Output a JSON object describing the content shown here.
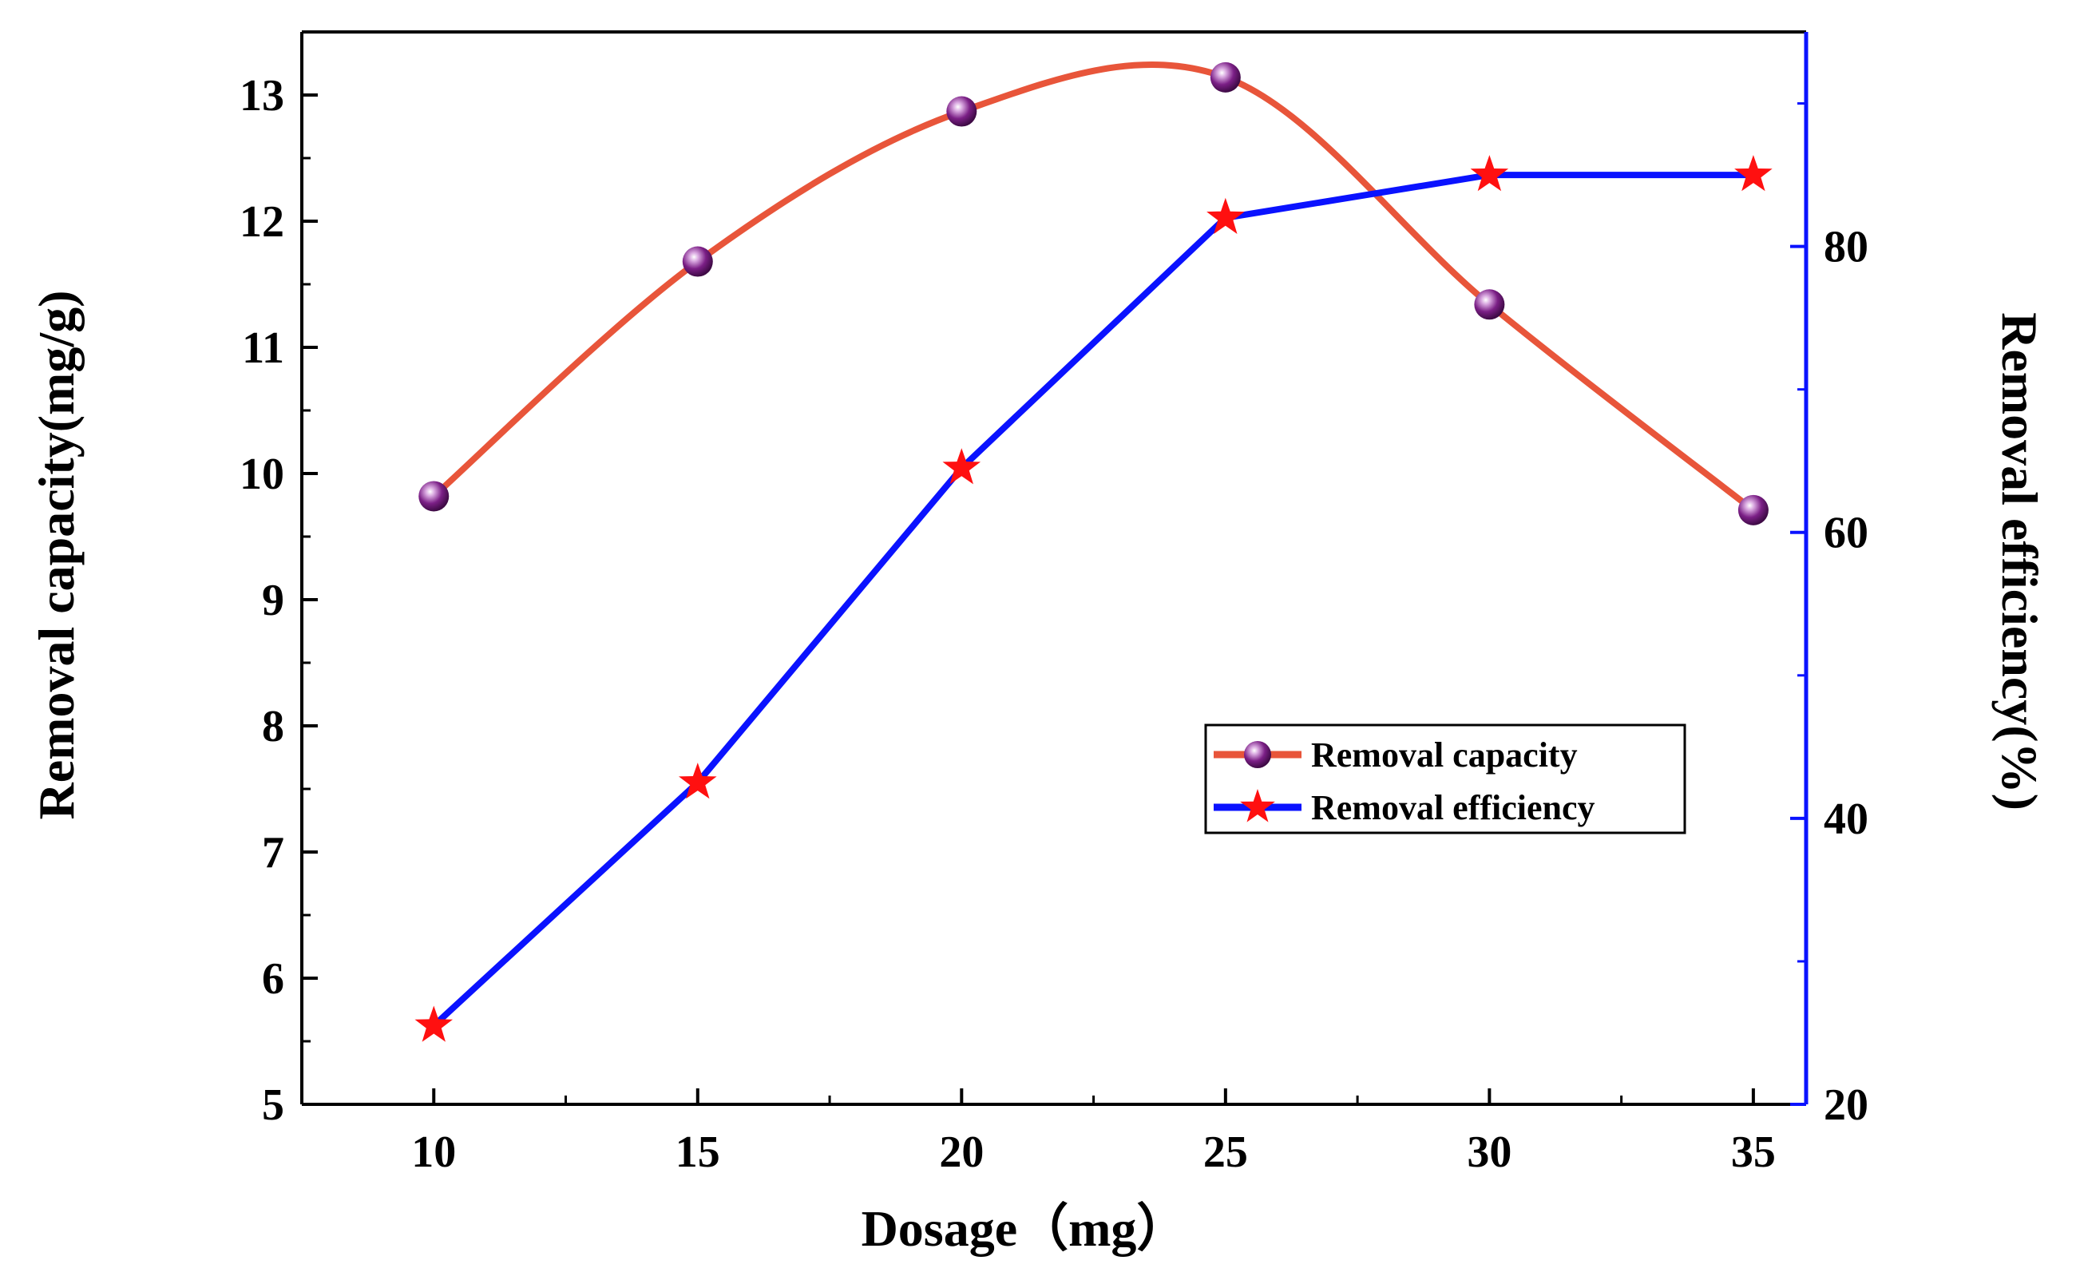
{
  "chart_data": {
    "type": "line",
    "x": [
      10,
      15,
      20,
      25,
      30,
      35
    ],
    "xlabel": "Dosage（mg）",
    "xlim": [
      7.5,
      36
    ],
    "x_ticks": [
      10,
      15,
      20,
      25,
      30,
      35
    ],
    "ylabel_left": "Removal capacity(mg/g)",
    "ylim_left": [
      5,
      13.5
    ],
    "y_ticks_left": [
      5,
      6,
      7,
      8,
      9,
      10,
      11,
      12,
      13
    ],
    "ylabel_right": "Removal efficiency(%)",
    "ylim_right": [
      20,
      95
    ],
    "y_ticks_right": [
      20,
      40,
      60,
      80
    ],
    "series": [
      {
        "name": "Removal capacity",
        "axis": "left",
        "values": [
          9.82,
          11.68,
          12.87,
          13.14,
          11.34,
          9.71
        ],
        "color": "#e8553a",
        "marker": "sphere",
        "marker_color": "#7b1f86",
        "smooth": true
      },
      {
        "name": "Removal efficiency",
        "axis": "right",
        "values": [
          25.5,
          42.5,
          64.5,
          82.0,
          85.0,
          85.0
        ],
        "color": "#0a12ff",
        "marker": "star",
        "marker_color": "#ff1010",
        "smooth": false
      }
    ],
    "legend": {
      "position": "center-right",
      "entries": [
        "Removal capacity",
        "Removal efficiency"
      ]
    },
    "grid": false
  }
}
